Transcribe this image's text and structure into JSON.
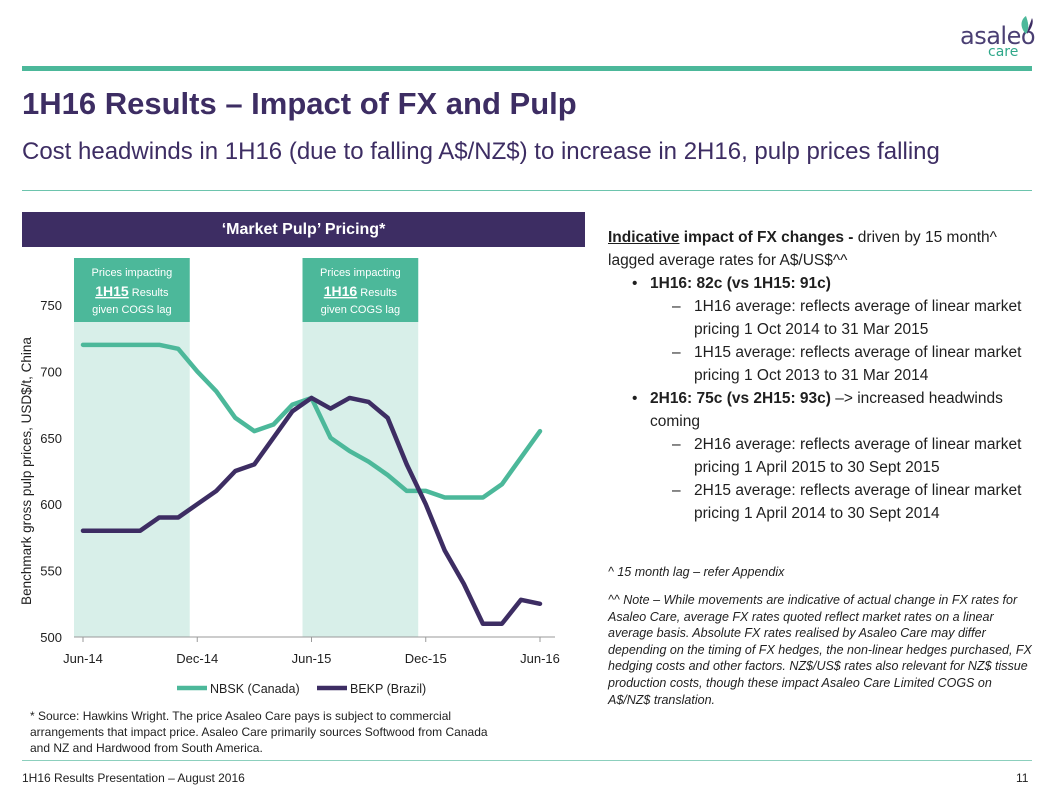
{
  "brand": {
    "logo_main": "asaleo",
    "logo_sub": "care"
  },
  "title": "1H16 Results – Impact of FX and Pulp",
  "subtitle": "Cost headwinds in 1H16 (due to falling A$/NZ$) to increase in 2H16, pulp prices falling",
  "chart_header": "‘Market Pulp’ Pricing*",
  "colors": {
    "purple": "#3d2d63",
    "teal": "#4cb89a",
    "shade": "#d8efe9",
    "label_bg": "#4cb89a"
  },
  "chart_data": {
    "type": "line",
    "ylabel": "Benchmark gross pulp prices, USD$/t, China",
    "ylim": [
      500,
      750
    ],
    "yticks": [
      500,
      550,
      600,
      650,
      700,
      750
    ],
    "x_tick_labels": [
      "Jun-14",
      "Dec-14",
      "Jun-15",
      "Dec-15",
      "Jun-16"
    ],
    "x_range": [
      0,
      24
    ],
    "x_tick_positions": [
      0,
      6,
      12,
      18,
      24
    ],
    "series": [
      {
        "name": "NBSK (Canada)",
        "color": "#4cb89a",
        "x": [
          0,
          1,
          2,
          3,
          4,
          5,
          6,
          7,
          8,
          9,
          10,
          11,
          12,
          13,
          14,
          15,
          16,
          17,
          18,
          19,
          20,
          21,
          22,
          23,
          24
        ],
        "values": [
          720,
          720,
          720,
          720,
          720,
          717,
          700,
          685,
          665,
          655,
          660,
          675,
          680,
          650,
          640,
          632,
          622,
          610,
          610,
          605,
          605,
          605,
          615,
          635,
          655
        ]
      },
      {
        "name": "BEKP (Brazil)",
        "color": "#3d2d63",
        "x": [
          0,
          1,
          2,
          3,
          4,
          5,
          6,
          7,
          8,
          9,
          10,
          11,
          12,
          13,
          14,
          15,
          16,
          17,
          18,
          19,
          20,
          21,
          22,
          23,
          24
        ],
        "values": [
          580,
          580,
          580,
          580,
          590,
          590,
          600,
          610,
          625,
          630,
          650,
          670,
          680,
          672,
          680,
          677,
          665,
          630,
          600,
          565,
          540,
          510,
          510,
          528,
          525
        ]
      }
    ],
    "shaded_periods": [
      {
        "x_start": 0,
        "x_end": 5.5,
        "label_line1": "Prices impacting",
        "label_bold": "1H15",
        "label_rest": " Results",
        "label_line3": "given COGS lag"
      },
      {
        "x_start": 12,
        "x_end": 17.5,
        "label_line1": "Prices impacting",
        "label_bold": "1H16",
        "label_rest": " Results",
        "label_line3": "given COGS lag"
      }
    ],
    "legend_placement": "bottom"
  },
  "source_note": "* Source: Hawkins Wright.    The price Asaleo Care pays is subject to commercial arrangements that impact price.  Asaleo Care primarily sources Softwood from Canada and NZ  and Hardwood from South America.",
  "right": {
    "head_underlined": "Indicative",
    "head_bold": " impact of FX changes -",
    "head_rest": " driven by 15 month^ lagged average rates for A$/US$^^",
    "b1": "1H16: 82c (vs 1H15: 91c)",
    "b1_s1": "1H16 average: reflects average of linear market pricing 1 Oct 2014 to 31 Mar 2015",
    "b1_s2": "1H15 average: reflects average of linear market pricing 1 Oct 2013 to 31 Mar 2014",
    "b2_bold": "2H16: 75c (vs 2H15: 93c)",
    "b2_rest": " –> increased headwinds coming",
    "b2_s1": "2H16 average: reflects average of linear market pricing 1 April 2015 to 30 Sept 2015",
    "b2_s2": "2H15 average: reflects average of linear market pricing 1 April 2014 to 30 Sept 2014",
    "bullet": "•",
    "dash": "–"
  },
  "note_lag": "^ 15 month lag – refer Appendix",
  "note_fx": "^^ Note – While movements are indicative of actual change in FX rates for Asaleo Care, average FX rates quoted reflect market rates on a linear average basis.  Absolute FX rates realised by Asaleo Care may differ depending on the timing of FX hedges, the non-linear hedges purchased, FX hedging costs and other factors.   NZ$/US$ rates also relevant for NZ$ tissue production costs, though these impact Asaleo Care Limited COGS on A$/NZ$ translation.",
  "footer": "1H16 Results Presentation – August 2016",
  "page_number": "11"
}
